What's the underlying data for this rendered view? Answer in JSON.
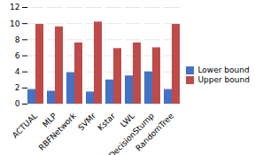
{
  "chart_data": {
    "type": "bar",
    "categories": [
      "ACTUAL",
      "MLP",
      "RBFNetwork",
      "SVMr",
      "Kstar",
      "LWL",
      "DecisionStump",
      "RandomTree"
    ],
    "series": [
      {
        "name": "Lower bound",
        "color": "#4472C4",
        "values": [
          1.8,
          1.6,
          3.9,
          1.5,
          3.0,
          3.5,
          4.0,
          1.8
        ]
      },
      {
        "name": "Upper bound",
        "color": "#BE4B48",
        "values": [
          9.9,
          9.6,
          7.6,
          10.2,
          6.9,
          7.6,
          7.0,
          9.9
        ]
      }
    ],
    "ylim": [
      0,
      12
    ],
    "yticks": [
      0,
      2,
      4,
      6,
      8,
      10,
      12
    ],
    "grid": true,
    "legend": "right"
  }
}
